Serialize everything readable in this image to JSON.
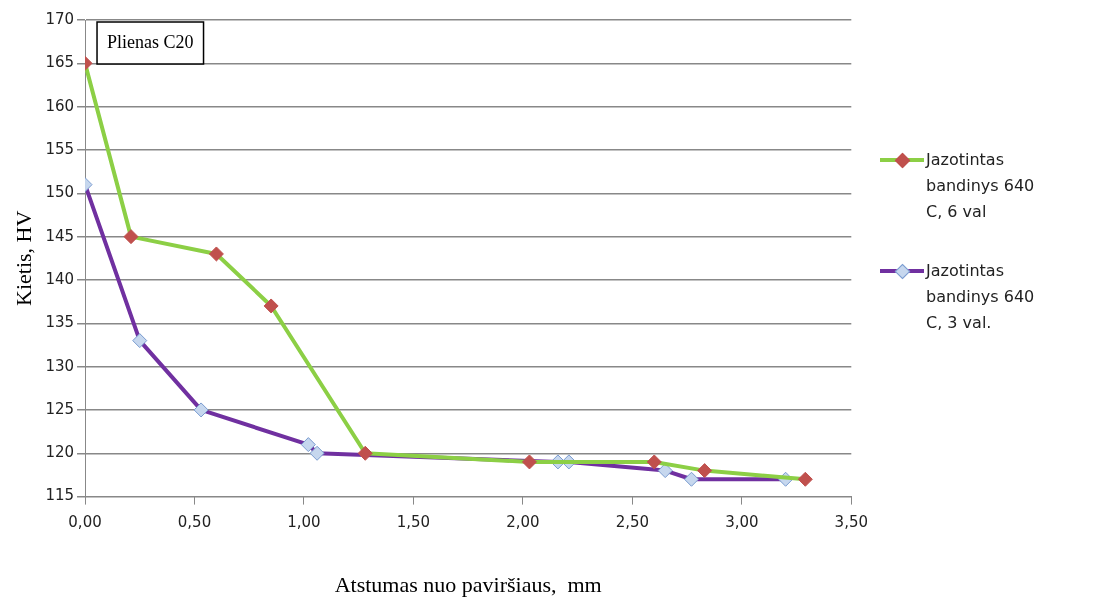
{
  "chart_data": {
    "type": "line",
    "xlabel": "Atstumas nuo paviršiaus,  mm",
    "ylabel": "Kietis, HV",
    "annotations": [
      "Plienas C20"
    ],
    "xlim": [
      0,
      3.5
    ],
    "xticks": [
      {
        "value": 0,
        "label": "0,00"
      },
      {
        "value": 0.5,
        "label": "0,50"
      },
      {
        "value": 1,
        "label": "1,00"
      },
      {
        "value": 1.5,
        "label": "1,50"
      },
      {
        "value": 2,
        "label": "2,00"
      },
      {
        "value": 2.5,
        "label": "2,50"
      },
      {
        "value": 3,
        "label": "3,00"
      },
      {
        "value": 3.5,
        "label": "3,50"
      }
    ],
    "ylim": [
      115,
      170
    ],
    "yticks": [
      115,
      120,
      125,
      130,
      135,
      140,
      145,
      150,
      155,
      160,
      165,
      170
    ],
    "grid": "y",
    "legend": "right",
    "marker": "diamond",
    "line_style": "solid",
    "series": [
      {
        "name": "Jazotintas bandinys 640 C, 6 val",
        "color": "#8ccf45",
        "x": [
          0,
          0.21,
          0.6,
          0.85,
          1.28,
          2.03,
          2.6,
          2.83,
          3.29
        ],
        "values": [
          165,
          145,
          143,
          137,
          120,
          119,
          119,
          118,
          117
        ]
      },
      {
        "name": "Jazotintas bandinys 640 C, 3 val.",
        "color": "#7030a0",
        "x": [
          0,
          0.25,
          0.53,
          1.02,
          1.06,
          2.16,
          2.21,
          2.65,
          2.77,
          3.2
        ],
        "values": [
          151,
          133,
          125,
          121,
          120,
          119,
          119,
          118,
          117,
          117
        ]
      }
    ]
  }
}
